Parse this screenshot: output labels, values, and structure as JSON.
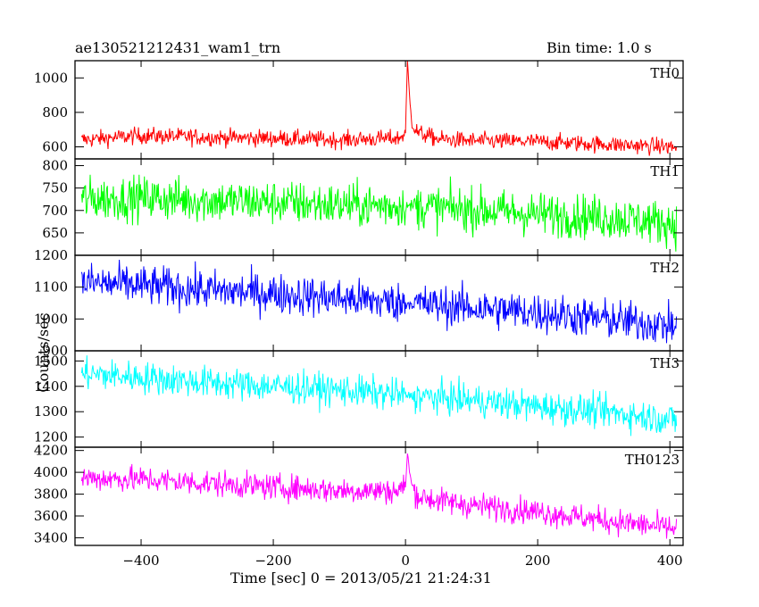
{
  "header": {
    "title": "ae130521212431_wam1_trn",
    "bin_time": "Bin time: 1.0 s"
  },
  "axes": {
    "xlabel": "Time [sec] 0 = 2013/05/21 21:24:31",
    "ylabel": "Counts/sec"
  },
  "chart_data": {
    "type": "line",
    "title": "ae130521212431_wam1_trn",
    "subtitle": "Bin time: 1.0 s",
    "xlabel": "Time [sec] 0 = 2013/05/21 21:24:31",
    "ylabel": "Counts/sec",
    "xlim": [
      -500,
      420
    ],
    "x_ticks": [
      -400,
      -200,
      0,
      200,
      400
    ],
    "x_tick_labels": [
      "−400",
      "−200",
      "0",
      "200",
      "400"
    ],
    "panels": [
      {
        "name": "TH0",
        "color": "#ff0000",
        "ylim": [
          530,
          1100
        ],
        "yticks": [
          600,
          800,
          1000
        ],
        "series": [
          {
            "name": "TH0",
            "x": [
              -490,
              -400,
              -300,
              -200,
              -100,
              -10,
              0,
              3,
              6,
              10,
              20,
              50,
              100,
              200,
              300,
              400,
              410
            ],
            "values": [
              640,
              665,
              655,
              650,
              640,
              650,
              680,
              1100,
              900,
              720,
              680,
              645,
              635,
              630,
              615,
              600,
              595
            ]
          }
        ]
      },
      {
        "name": "TH1",
        "color": "#00ff00",
        "ylim": [
          600,
          815
        ],
        "yticks": [
          650,
          700,
          750,
          800
        ],
        "series": [
          {
            "name": "TH1",
            "x": [
              -490,
              -400,
              -300,
              -200,
              -100,
              0,
              100,
              200,
              300,
              400,
              410
            ],
            "values": [
              725,
              728,
              722,
              718,
              712,
              710,
              702,
              692,
              685,
              672,
              668
            ]
          }
        ]
      },
      {
        "name": "TH2",
        "color": "#0000ff",
        "ylim": [
          900,
          1200
        ],
        "yticks": [
          900,
          1000,
          1100,
          1200
        ],
        "series": [
          {
            "name": "TH2",
            "x": [
              -490,
              -400,
              -300,
              -200,
              -100,
              0,
              100,
              200,
              300,
              400,
              410
            ],
            "values": [
              1115,
              1105,
              1090,
              1080,
              1065,
              1050,
              1035,
              1020,
              1000,
              980,
              975
            ]
          }
        ]
      },
      {
        "name": "TH3",
        "color": "#00ffff",
        "ylim": [
          1160,
          1540
        ],
        "yticks": [
          1200,
          1300,
          1400,
          1500
        ],
        "series": [
          {
            "name": "TH3",
            "x": [
              -490,
              -400,
              -300,
              -200,
              -100,
              0,
              100,
              200,
              300,
              400,
              410
            ],
            "values": [
              1450,
              1435,
              1415,
              1400,
              1385,
              1365,
              1345,
              1320,
              1300,
              1270,
              1265
            ]
          }
        ]
      },
      {
        "name": "TH0123",
        "color": "#ff00ff",
        "ylim": [
          3330,
          4230
        ],
        "yticks": [
          3400,
          3600,
          3800,
          4000,
          4200
        ],
        "series": [
          {
            "name": "TH0123",
            "x": [
              -490,
              -400,
              -300,
              -200,
              -100,
              -10,
              0,
              3,
              6,
              10,
              20,
              50,
              100,
              200,
              300,
              400,
              410
            ],
            "values": [
              3950,
              3935,
              3900,
              3865,
              3835,
              3830,
              3880,
              4180,
              4000,
              3880,
              3780,
              3740,
              3700,
              3640,
              3560,
              3490,
              3480
            ]
          }
        ]
      }
    ],
    "noise_amplitude": [
      35,
      35,
      45,
      45,
      85
    ],
    "grid": false
  }
}
